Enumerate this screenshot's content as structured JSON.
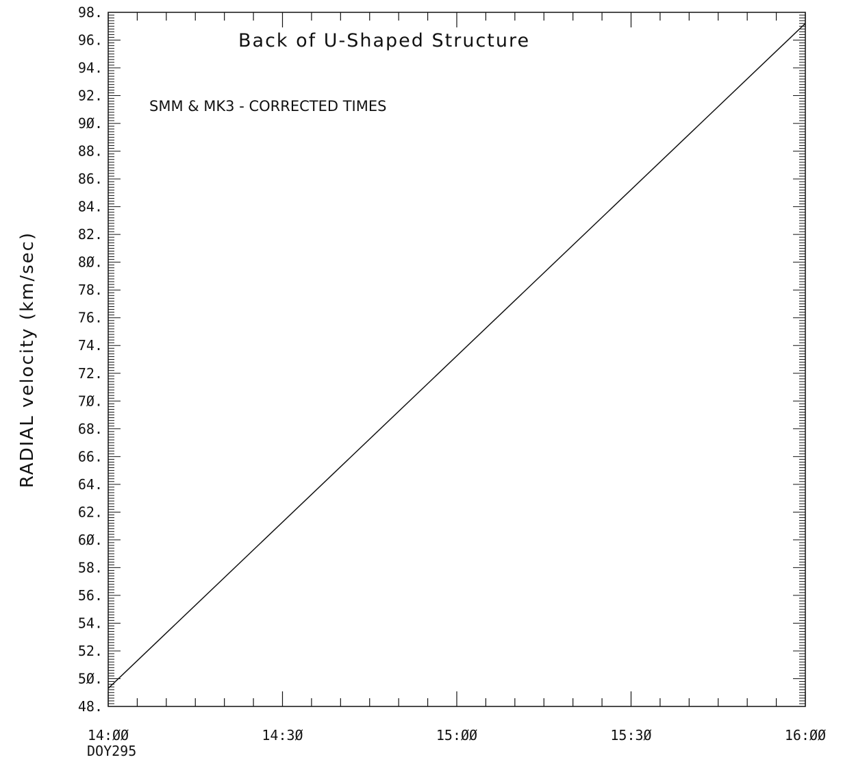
{
  "chart_data": {
    "type": "line",
    "title": "Back of U-Shaped Structure",
    "subtitle": "SMM & MK3 - CORRECTED TIMES",
    "ylabel": "RADIAL velocity (km/sec)",
    "xlabel_note": "DOY295",
    "x_ticks": [
      "14:00",
      "14:30",
      "15:00",
      "15:30",
      "16:00"
    ],
    "y_ticks": [
      "98.",
      "96.",
      "94.",
      "92.",
      "90.",
      "88.",
      "86.",
      "84.",
      "82.",
      "80.",
      "78.",
      "76.",
      "74.",
      "72.",
      "70.",
      "68.",
      "66.",
      "64.",
      "62.",
      "60.",
      "58.",
      "56.",
      "54.",
      "52.",
      "50.",
      "48."
    ],
    "xlim": [
      "14:00",
      "16:00"
    ],
    "ylim": [
      48,
      98
    ],
    "grid": false,
    "series": [
      {
        "x": [
          "14:00",
          "16:00"
        ],
        "y": [
          49.3,
          97.2
        ]
      }
    ]
  }
}
